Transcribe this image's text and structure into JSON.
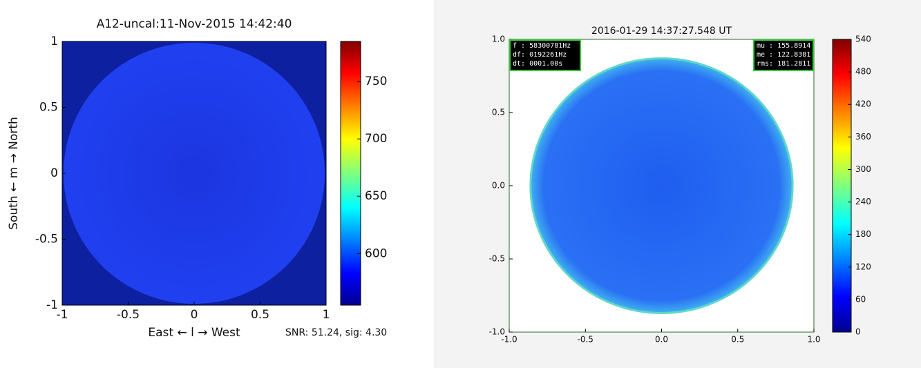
{
  "chart_data": [
    {
      "type": "heatmap",
      "title": "A12-uncal:11-Nov-2015 14:42:40",
      "xlabel": "East ← l → West",
      "ylabel": "South ← m → North",
      "xlim": [
        -1,
        1
      ],
      "ylim": [
        -1,
        1
      ],
      "xticks": [
        -1,
        -0.5,
        0,
        0.5,
        1
      ],
      "yticks": [
        -1,
        -0.5,
        0,
        0.5,
        1
      ],
      "colorbar": {
        "colormap": "jet",
        "lim": [
          555,
          785
        ],
        "ticks": [
          600,
          650,
          700,
          750
        ]
      },
      "annotation": "SNR: 51.24, sig: 4.30"
    },
    {
      "type": "heatmap",
      "title": "2016-01-29 14:37:27.548 UT",
      "xlim": [
        -1,
        1
      ],
      "ylim": [
        -1,
        1
      ],
      "xticks": [
        {
          "value": -1,
          "label": "-1.0"
        },
        -0.5,
        {
          "value": 0,
          "label": "0.0"
        },
        0.5,
        {
          "value": 1,
          "label": "1.0"
        }
      ],
      "yticks": [
        {
          "value": -1,
          "label": "-1.0"
        },
        -0.5,
        {
          "value": 0,
          "label": "0.0"
        },
        0.5,
        {
          "value": 1,
          "label": "1.0"
        }
      ],
      "colorbar": {
        "colormap": "jet",
        "lim": [
          0,
          540
        ],
        "ticks": [
          0,
          60,
          120,
          180,
          240,
          300,
          360,
          420,
          480,
          540
        ]
      },
      "info_left": [
        "f : 58300781Hz",
        "df: 0192261Hz",
        "dt: 0001.00s"
      ],
      "info_right": [
        "mu : 155.8914",
        "me : 122.8381",
        "rms: 181.2811"
      ]
    }
  ]
}
